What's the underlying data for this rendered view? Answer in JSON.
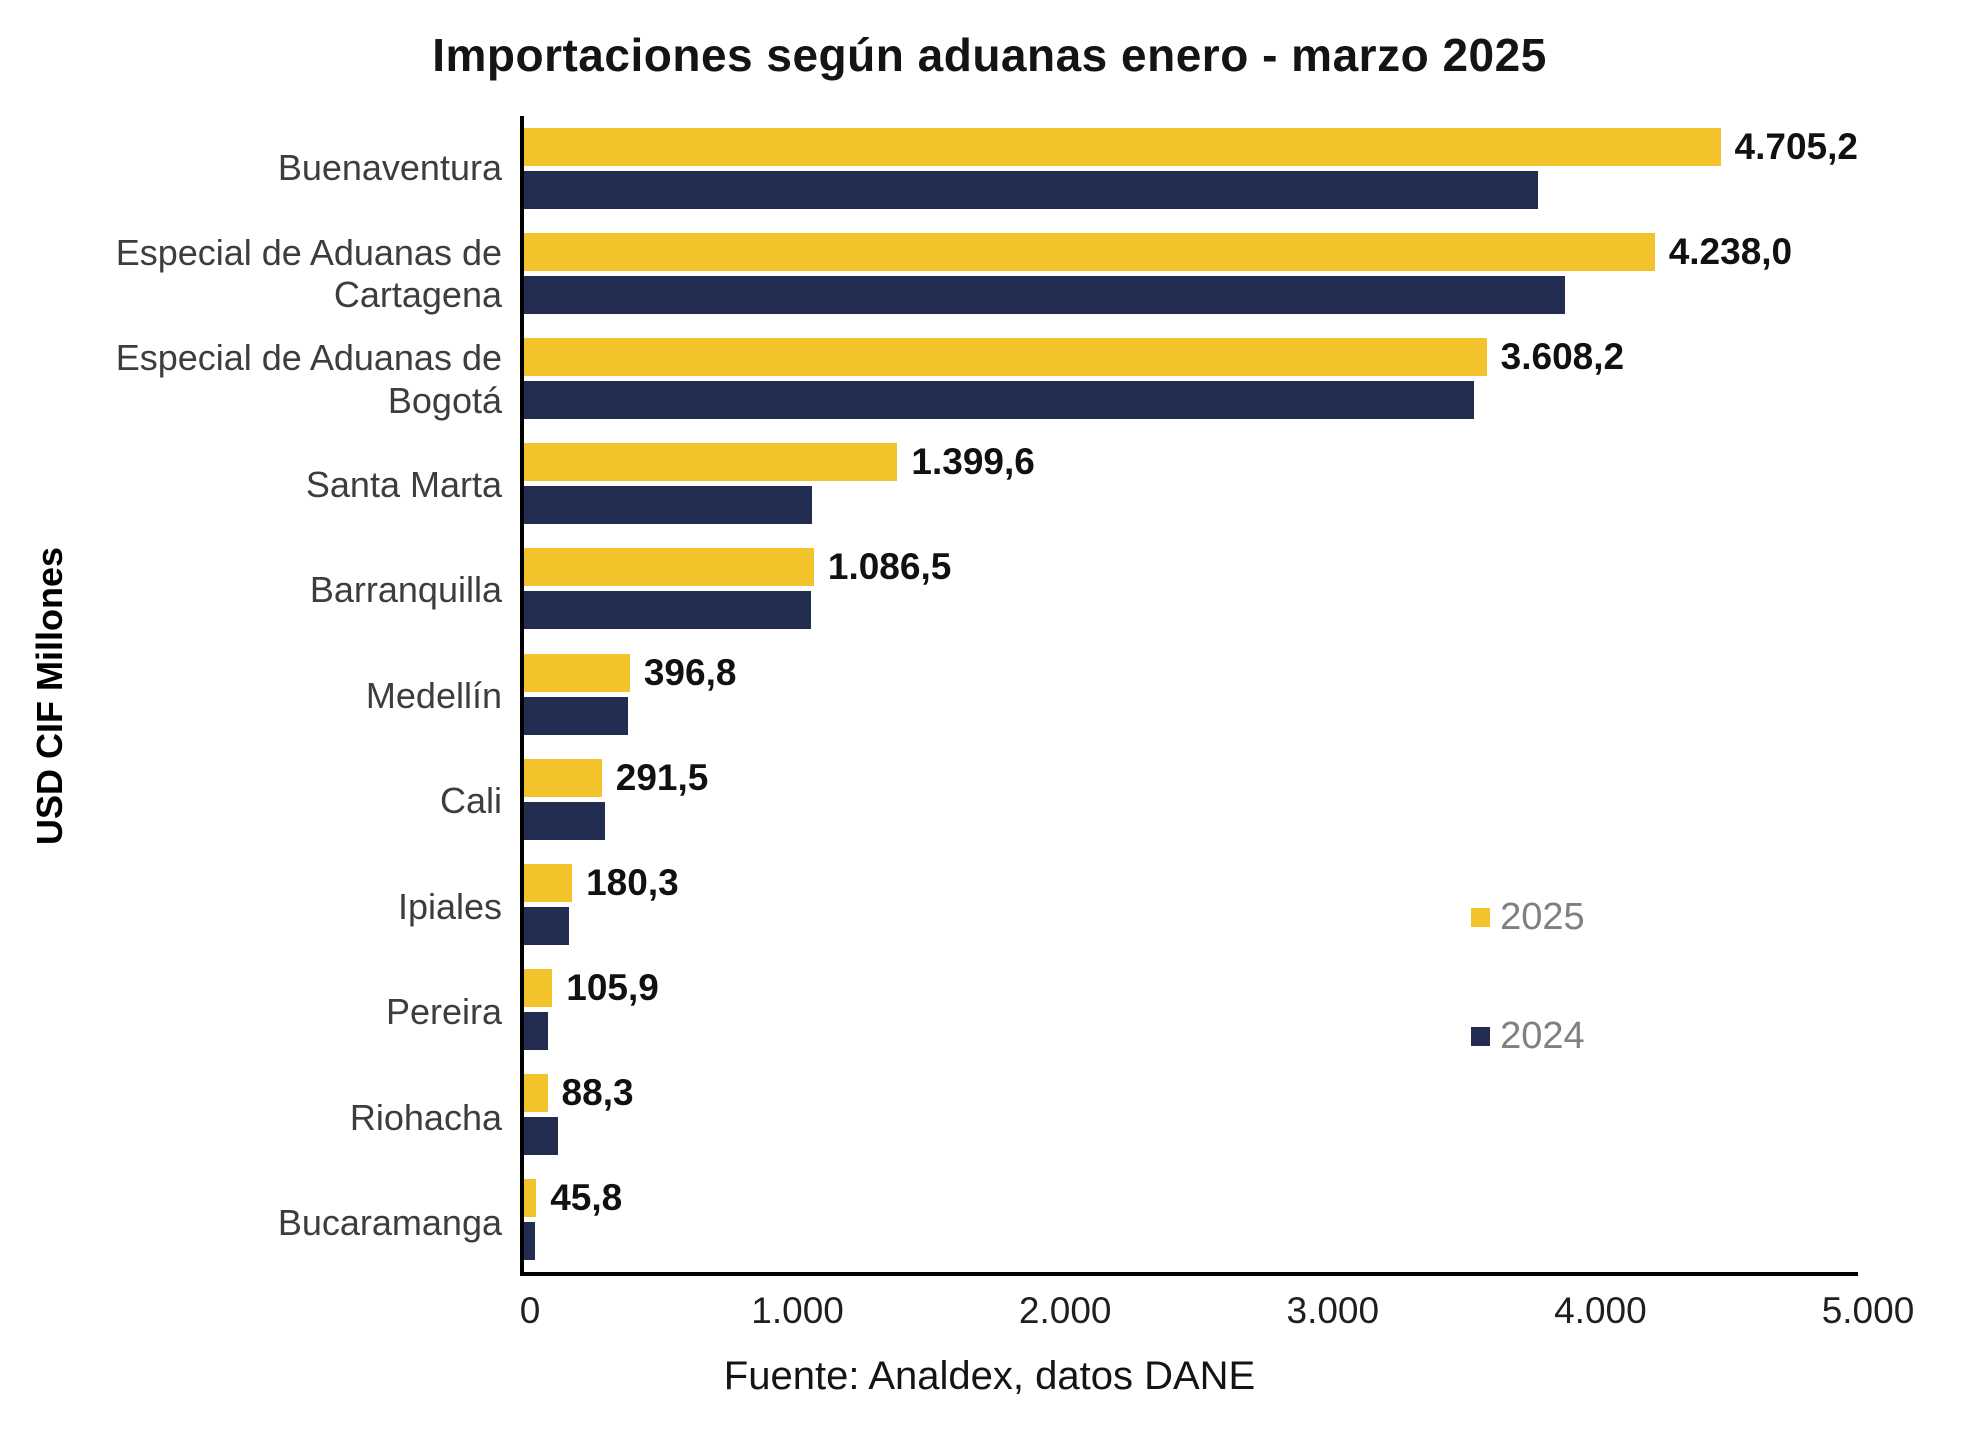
{
  "footer": "Fuente: Analdex, datos DANE",
  "colors": {
    "series_2025": "#F3C32C",
    "series_2024": "#232D52",
    "axis": "#000000",
    "legend_text": "#808080",
    "value_label": "#111111"
  },
  "chart_data": {
    "type": "bar",
    "orientation": "horizontal",
    "title": "Importaciones según aduanas enero - marzo 2025",
    "ylabel": "USD CIF Millones",
    "xlabel": "",
    "categories": [
      "Buenaventura",
      "Especial de Aduanas de Cartagena",
      "Especial de Aduanas de Bogotá",
      "Santa Marta",
      "Barranquilla",
      "Medellín",
      "Cali",
      "Ipiales",
      "Pereira",
      "Riohacha",
      "Bucaramanga"
    ],
    "series": [
      {
        "name": "2025",
        "color": "#F3C32C",
        "values": [
          4705.2,
          4238.0,
          3608.2,
          1399.6,
          1086.5,
          396.8,
          291.5,
          180.3,
          105.9,
          88.3,
          45.8
        ],
        "labels": [
          "4.705,2",
          "4.238,0",
          "3.608,2",
          "1.399,6",
          "1.086,5",
          "396,8",
          "291,5",
          "180,3",
          "105,9",
          "88,3",
          "45,8"
        ]
      },
      {
        "name": "2024",
        "color": "#232D52",
        "values": [
          3800,
          3900,
          3560,
          1080,
          1075,
          390,
          305,
          170,
          90,
          128,
          40
        ],
        "labels": null
      }
    ],
    "xlim": [
      0,
      5000
    ],
    "xticks": [
      "0",
      "1.000",
      "2.000",
      "3.000",
      "4.000",
      "5.000"
    ],
    "grid": false,
    "legend_position": "inside-right"
  }
}
